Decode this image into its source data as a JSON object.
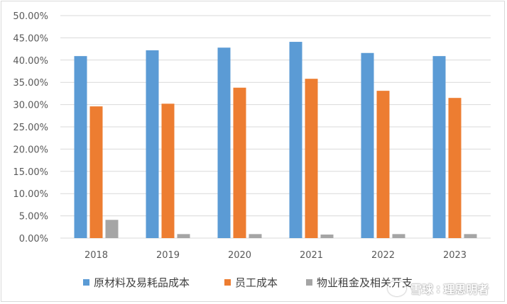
{
  "chart_data": {
    "type": "bar",
    "categories": [
      "2018",
      "2019",
      "2020",
      "2021",
      "2022",
      "2023"
    ],
    "series": [
      {
        "name": "原材料及易耗品成本",
        "color": "#5b9bd5",
        "values": [
          40.9,
          42.2,
          42.8,
          44.1,
          41.6,
          40.9
        ]
      },
      {
        "name": "员工成本",
        "color": "#ed7d31",
        "values": [
          29.6,
          30.2,
          33.8,
          35.8,
          33.1,
          31.5
        ]
      },
      {
        "name": "物业租金及相关开支",
        "color": "#a5a5a5",
        "values": [
          4.1,
          0.9,
          0.9,
          0.8,
          0.9,
          0.9
        ]
      }
    ],
    "yticks": [
      "0.00%",
      "5.00%",
      "10.00%",
      "15.00%",
      "20.00%",
      "25.00%",
      "30.00%",
      "35.00%",
      "40.00%",
      "45.00%",
      "50.00%"
    ],
    "ylim": [
      0,
      50
    ],
    "grid": true,
    "legend_position": "bottom",
    "title": "",
    "xlabel": "",
    "ylabel": ""
  },
  "legend": {
    "s0": "原材料及易耗品成本",
    "s1": "员工成本",
    "s2": "物业租金及相关开支"
  },
  "watermark": {
    "brand": "雪球",
    "author": "理思明者"
  }
}
